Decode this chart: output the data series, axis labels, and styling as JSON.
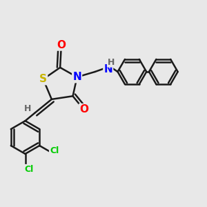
{
  "bg_color": "#e8e8e8",
  "bond_color": "#1a1a1a",
  "bond_width": 1.8,
  "atom_colors": {
    "S": "#c8b400",
    "N": "#0000ff",
    "O": "#ff0000",
    "Cl": "#00cc00",
    "H_label": "#666666",
    "C": "#1a1a1a"
  },
  "font_size_atoms": 11,
  "font_size_small": 9
}
